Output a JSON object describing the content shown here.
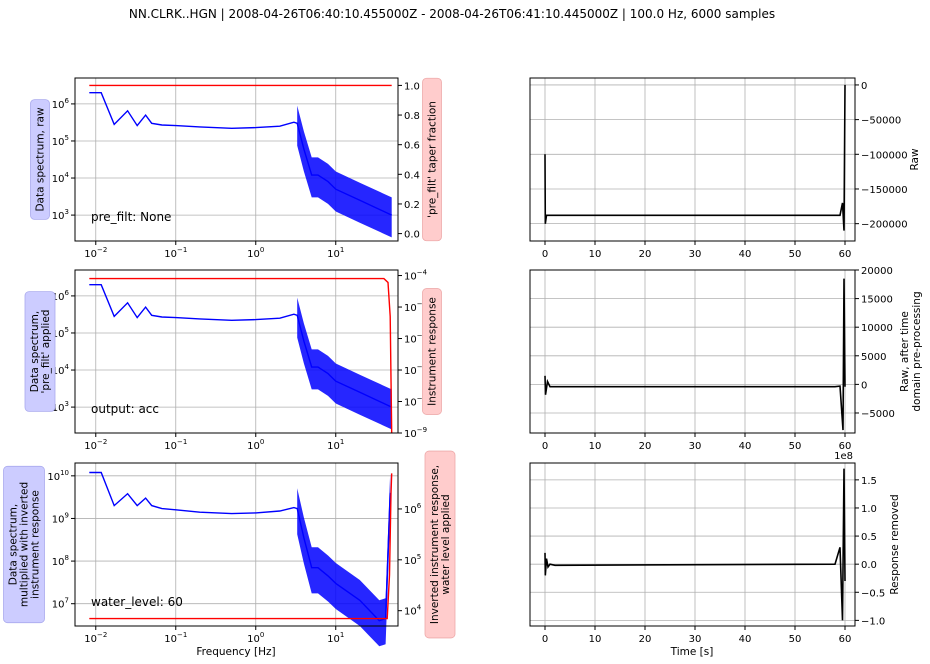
{
  "title": "NN.CLRK..HGN | 2008-04-26T06:40:10.455000Z - 2008-04-26T06:41:10.445000Z | 100.0 Hz, 6000 samples",
  "colors": {
    "spectrum": "#0000ff",
    "secondary": "#ff0000",
    "time": "#000000",
    "grid": "#b0b0b0",
    "blue_box": "#ccccff",
    "red_box": "#ffcccc"
  },
  "left_xlabel": "Frequency [Hz]",
  "right_xlabel": "Time [s]",
  "freq_ticks": [
    "10^-2",
    "10^-1",
    "10^0",
    "10^1"
  ],
  "time_ticks": [
    "0",
    "10",
    "20",
    "30",
    "40",
    "50",
    "60"
  ],
  "panels": [
    {
      "ylabel": [
        "Data spectrum, raw"
      ],
      "y_ticks": [
        "10^3",
        "10^4",
        "10^5",
        "10^6"
      ],
      "secondary_label": [
        "'pre_filt' taper fraction"
      ],
      "secondary_ticks": [
        "0.0",
        "0.2",
        "0.4",
        "0.6",
        "0.8",
        "1.0"
      ],
      "annotation": "pre_filt: None",
      "time_ylabel": [
        "Raw"
      ],
      "time_ticks_y": [
        "0",
        "−50000",
        "−100000",
        "−150000",
        "−200000"
      ],
      "time_offset": ""
    },
    {
      "ylabel": [
        "Data spectrum,",
        "'pre_filt' applied"
      ],
      "y_ticks": [
        "10^3",
        "10^4",
        "10^5",
        "10^6"
      ],
      "secondary_label": [
        "Instrument response"
      ],
      "secondary_ticks": [
        "10^-9",
        "10^-8",
        "10^-7",
        "10^-6",
        "10^-5",
        "10^-4"
      ],
      "annotation": "output: acc",
      "time_ylabel": [
        "Raw, after time",
        "domain pre-processing"
      ],
      "time_ticks_y": [
        "20000",
        "15000",
        "10000",
        "5000",
        "0",
        "−5000"
      ],
      "time_offset": ""
    },
    {
      "ylabel": [
        "Data spectrum,",
        "multiplied with inverted",
        "instrument response"
      ],
      "y_ticks": [
        "10^7",
        "10^8",
        "10^9",
        "10^10"
      ],
      "secondary_label": [
        "Inverted instrument response,",
        "water level applied"
      ],
      "secondary_ticks": [
        "10^4",
        "10^5",
        "10^6"
      ],
      "annotation": "water_level: 60",
      "time_ylabel": [
        "Response removed"
      ],
      "time_ticks_y": [
        "1.5",
        "1.0",
        "0.5",
        "0.0",
        "−0.5",
        "−1.0"
      ],
      "time_offset": "1e8"
    }
  ],
  "chart_data": [
    {
      "type": "line",
      "xscale": "log",
      "xlim": [
        0.0055,
        60
      ],
      "yscale": "log",
      "ylim": [
        200,
        5000000
      ],
      "series": [
        {
          "color": "blue",
          "x": [
            0.0083,
            0.0117,
            0.017,
            0.025,
            0.033,
            0.042,
            0.05,
            0.067,
            0.1,
            0.2,
            0.5,
            1,
            2,
            3,
            3.3,
            4,
            5,
            6,
            8,
            10,
            20,
            50
          ],
          "y": [
            2000000,
            2000000,
            280000,
            650000,
            260000,
            500000,
            300000,
            270000,
            260000,
            240000,
            220000,
            230000,
            250000,
            320000,
            300000,
            60000,
            12000,
            12000,
            8000,
            5000,
            2500,
            1000
          ]
        }
      ],
      "secondary": {
        "ylim": [
          -0.05,
          1.05
        ],
        "series": [
          {
            "color": "red",
            "x": [
              0.0083,
              50
            ],
            "y": [
              1,
              1
            ]
          }
        ]
      }
    },
    {
      "type": "line",
      "xscale": "log",
      "xlim": [
        0.0055,
        60
      ],
      "yscale": "log",
      "ylim": [
        200,
        5000000
      ],
      "series": [
        {
          "color": "blue",
          "x": [
            0.0083,
            0.0117,
            0.017,
            0.025,
            0.033,
            0.042,
            0.05,
            0.067,
            0.1,
            0.2,
            0.5,
            1,
            2,
            3,
            3.3,
            4,
            5,
            6,
            8,
            10,
            20,
            50
          ],
          "y": [
            2000000,
            2000000,
            280000,
            650000,
            260000,
            500000,
            300000,
            270000,
            260000,
            240000,
            220000,
            230000,
            250000,
            320000,
            300000,
            60000,
            12000,
            12000,
            8000,
            5000,
            2500,
            1000
          ]
        }
      ],
      "secondary": {
        "yscale": "log",
        "ylim": [
          1e-09,
          0.00015
        ],
        "series": [
          {
            "color": "red",
            "x": [
              0.0083,
              40,
              45,
              48,
              50
            ],
            "y": [
              8e-05,
              8e-05,
              6e-05,
              5e-06,
              1e-09
            ]
          }
        ]
      }
    },
    {
      "type": "line",
      "xscale": "log",
      "xlim": [
        0.0055,
        60
      ],
      "yscale": "log",
      "ylim": [
        3000000,
        20000000000
      ],
      "series": [
        {
          "color": "blue",
          "x": [
            0.0083,
            0.0117,
            0.017,
            0.025,
            0.033,
            0.042,
            0.05,
            0.067,
            0.1,
            0.2,
            0.5,
            1,
            2,
            3,
            3.3,
            4,
            5,
            6,
            8,
            10,
            20,
            35,
            42,
            48
          ],
          "y": [
            12000000000,
            12000000000,
            2000000000,
            3800000000,
            2000000000,
            3000000000,
            2000000000,
            1700000000,
            1600000000,
            1400000000,
            1300000000,
            1350000000,
            1500000000,
            1800000000,
            1700000000,
            350000000,
            70000000,
            70000000,
            45000000,
            30000000,
            12000000,
            4000000,
            4500000,
            4000000000
          ]
        }
      ],
      "secondary": {
        "yscale": "log",
        "ylim": [
          5000,
          8000000
        ],
        "series": [
          {
            "color": "red",
            "x": [
              0.0083,
              40,
              44,
              47,
              49,
              50
            ],
            "y": [
              7000,
              7000,
              7000,
              50000,
              2000000,
              5000000
            ]
          }
        ]
      }
    },
    {
      "type": "line",
      "xlim": [
        -3,
        62
      ],
      "ylim": [
        -225000,
        10000
      ],
      "series": [
        {
          "color": "black",
          "x": [
            0,
            0.05,
            0.3,
            1,
            58,
            59,
            59.5,
            59.8,
            60
          ],
          "y": [
            -100000,
            -200000,
            -188000,
            -188000,
            -188000,
            -188000,
            -170000,
            -210000,
            0
          ]
        }
      ]
    },
    {
      "type": "line",
      "xlim": [
        -3,
        62
      ],
      "ylim": [
        -8500,
        20000
      ],
      "series": [
        {
          "color": "black",
          "x": [
            0,
            0.1,
            0.5,
            1,
            58,
            59,
            59.6,
            59.8,
            60
          ],
          "y": [
            1500,
            -1800,
            500,
            -400,
            -400,
            -300,
            -8000,
            18500,
            -400
          ]
        }
      ]
    },
    {
      "type": "line",
      "xlim": [
        -3,
        62
      ],
      "ylim": [
        -1.1,
        1.8
      ],
      "series": [
        {
          "color": "black",
          "x": [
            0,
            0.05,
            0.3,
            0.6,
            1,
            2,
            58,
            59,
            59.5,
            59.8,
            60
          ],
          "y": [
            0.2,
            -0.2,
            0.1,
            -0.05,
            0,
            -0.02,
            0,
            0.3,
            -1.0,
            1.7,
            -0.3
          ]
        }
      ]
    }
  ]
}
